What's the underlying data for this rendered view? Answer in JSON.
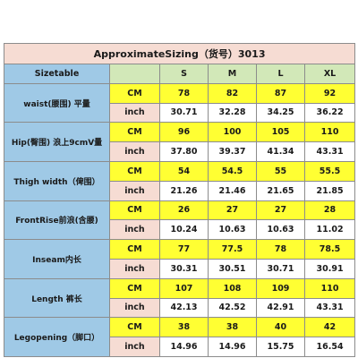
{
  "title": "ApproximateSizing（货号）3013",
  "header": {
    "label": "Sizetable",
    "sizes": [
      "S",
      "M",
      "L",
      "XL"
    ]
  },
  "rows": [
    {
      "label": "waist(腰围) 平量",
      "cm_label": "CM",
      "inch_label": "inch",
      "cm": [
        "78",
        "82",
        "87",
        "92"
      ],
      "inch": [
        "30.71",
        "32.28",
        "34.25",
        "36.22"
      ]
    },
    {
      "label": "Hip(臀围) 浪上9cmV量",
      "cm_label": "CM",
      "inch_label": "inch",
      "cm": [
        "96",
        "100",
        "105",
        "110"
      ],
      "inch": [
        "37.80",
        "39.37",
        "41.34",
        "43.31"
      ]
    },
    {
      "label": "Thigh width（俾围）",
      "cm_label": "CM",
      "inch_label": "inch",
      "cm": [
        "54",
        "54.5",
        "55",
        "55.5"
      ],
      "inch": [
        "21.26",
        "21.46",
        "21.65",
        "21.85"
      ]
    },
    {
      "label": "FrontRise前浪(含腰)",
      "cm_label": "CM",
      "inch_label": "inch",
      "cm": [
        "26",
        "27",
        "27",
        "28"
      ],
      "inch": [
        "10.24",
        "10.63",
        "10.63",
        "11.02"
      ]
    },
    {
      "label": "Inseam内长",
      "cm_label": "CM",
      "inch_label": "inch",
      "cm": [
        "77",
        "77.5",
        "78",
        "78.5"
      ],
      "inch": [
        "30.31",
        "30.51",
        "30.71",
        "30.91"
      ]
    },
    {
      "label": "Length 裤长",
      "cm_label": "CM",
      "inch_label": "inch",
      "cm": [
        "107",
        "108",
        "109",
        "110"
      ],
      "inch": [
        "42.13",
        "42.52",
        "42.91",
        "43.31"
      ]
    },
    {
      "label": "Legopening（脚口）",
      "cm_label": "CM",
      "inch_label": "inch",
      "cm": [
        "38",
        "38",
        "40",
        "42"
      ],
      "inch": [
        "14.96",
        "14.96",
        "15.75",
        "16.54"
      ]
    }
  ]
}
